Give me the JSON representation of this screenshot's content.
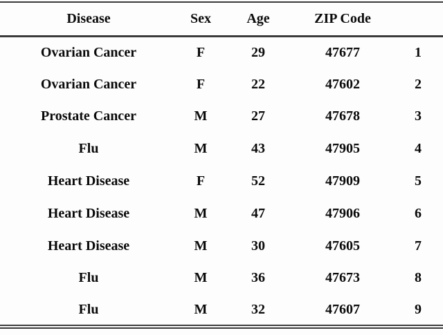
{
  "table": {
    "columns": [
      "Disease",
      "Sex",
      "Age",
      "ZIP Code",
      ""
    ],
    "rows": [
      [
        "Ovarian Cancer",
        "F",
        "29",
        "47677",
        "1"
      ],
      [
        "Ovarian Cancer",
        "F",
        "22",
        "47602",
        "2"
      ],
      [
        "Prostate Cancer",
        "M",
        "27",
        "47678",
        "3"
      ],
      [
        "Flu",
        "M",
        "43",
        "47905",
        "4"
      ],
      [
        "Heart Disease",
        "F",
        "52",
        "47909",
        "5"
      ],
      [
        "Heart Disease",
        "M",
        "47",
        "47906",
        "6"
      ],
      [
        "Heart Disease",
        "M",
        "30",
        "47605",
        "7"
      ],
      [
        "Flu",
        "M",
        "36",
        "47673",
        "8"
      ],
      [
        "Flu",
        "M",
        "32",
        "47607",
        "9"
      ]
    ]
  },
  "colors": {
    "rule": "#3a3a3a",
    "text": "#0a0a0a",
    "background": "#fdfdfd"
  }
}
